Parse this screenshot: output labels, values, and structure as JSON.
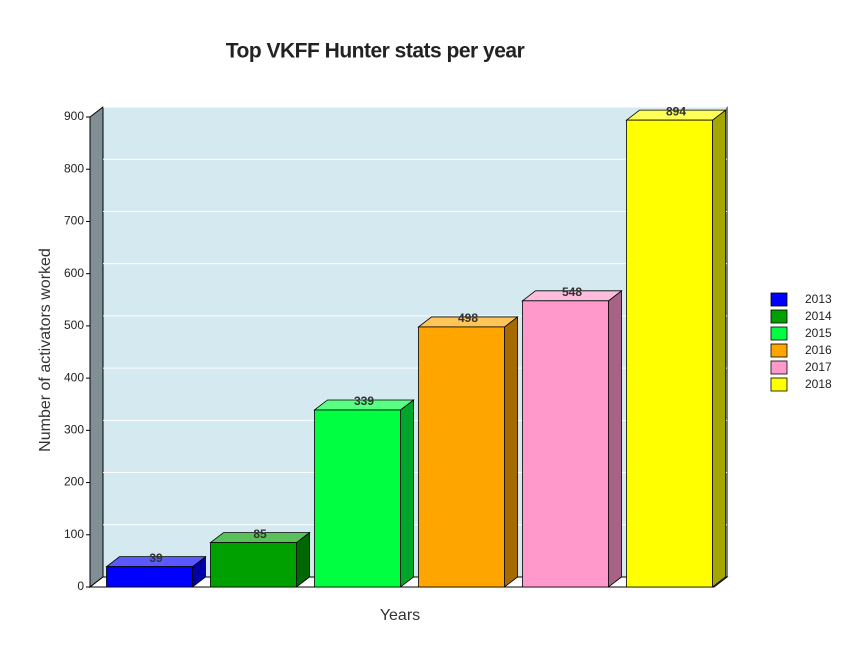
{
  "chart_data": {
    "type": "bar3d",
    "title": "Top VKFF Hunter stats per year",
    "x_label": "Years",
    "y_label": "Number of activators worked",
    "categories": [
      "2013",
      "2014",
      "2015",
      "2016",
      "2017",
      "2018"
    ],
    "values": [
      39,
      85,
      339,
      498,
      548,
      894
    ],
    "colors": [
      "#0000ff",
      "#00a000",
      "#00ff40",
      "#ffa500",
      "#ff99cc",
      "#ffff00"
    ],
    "ylim": [
      0,
      900
    ],
    "yticks": [
      0,
      100,
      200,
      300,
      400,
      500,
      600,
      700,
      800,
      900
    ],
    "grid": true,
    "legend": "right"
  }
}
